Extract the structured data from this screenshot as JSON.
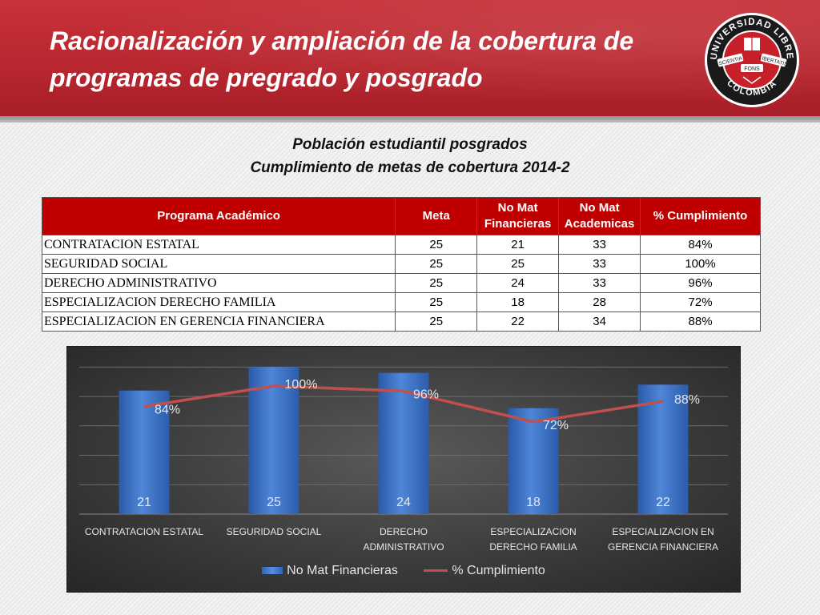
{
  "header": {
    "title_line1": "Racionalización y ampliación de la cobertura de",
    "title_line2": "programas  de pregrado y posgrado",
    "logo": {
      "top_text": "UNIVERSIDAD LIBRE",
      "bottom_text": "COLOMBIA",
      "left_text": "SCIENTIA",
      "right_text": "LIBERTATIS",
      "center_text": "FONS"
    }
  },
  "subtitle": {
    "line1": "Población estudiantil posgrados",
    "line2": "Cumplimiento de metas de cobertura 2014-2"
  },
  "table": {
    "headers": [
      "Programa Académico",
      "Meta",
      "No Mat Financieras",
      "No Mat Academicas",
      "% Cumplimiento"
    ],
    "rows": [
      [
        "CONTRATACION ESTATAL",
        "25",
        "21",
        "33",
        "84%"
      ],
      [
        "SEGURIDAD SOCIAL",
        "25",
        "25",
        "33",
        "100%"
      ],
      [
        "DERECHO ADMINISTRATIVO",
        "25",
        "24",
        "33",
        "96%"
      ],
      [
        "ESPECIALIZACION DERECHO FAMILIA",
        "25",
        "18",
        "28",
        "72%"
      ],
      [
        "ESPECIALIZACION EN GERENCIA FINANCIERA",
        "25",
        "22",
        "34",
        "88%"
      ]
    ]
  },
  "chart_data": {
    "type": "bar",
    "categories": [
      [
        "CONTRATACION ESTATAL"
      ],
      [
        "SEGURIDAD SOCIAL"
      ],
      [
        "DERECHO",
        "ADMINISTRATIVO"
      ],
      [
        "ESPECIALIZACION",
        "DERECHO FAMILIA"
      ],
      [
        "ESPECIALIZACION EN",
        "GERENCIA FINANCIERA"
      ]
    ],
    "series": [
      {
        "name": "No Mat Financieras",
        "type": "bar",
        "values": [
          21,
          25,
          24,
          18,
          22
        ],
        "labels": [
          "21",
          "25",
          "24",
          "18",
          "22"
        ],
        "color": "#3a72c8"
      },
      {
        "name": "% Cumplimiento",
        "type": "line",
        "values": [
          84,
          100,
          96,
          72,
          88
        ],
        "labels": [
          "84%",
          "100%",
          "96%",
          "72%",
          "88%"
        ],
        "color": "#c0504d"
      }
    ],
    "ylim": [
      0,
      26
    ],
    "grid": true,
    "legend": "bottom"
  },
  "colors": {
    "header_red": "#b8262f",
    "table_header": "#c00000",
    "bar": "#3a72c8",
    "line": "#c0504d"
  }
}
